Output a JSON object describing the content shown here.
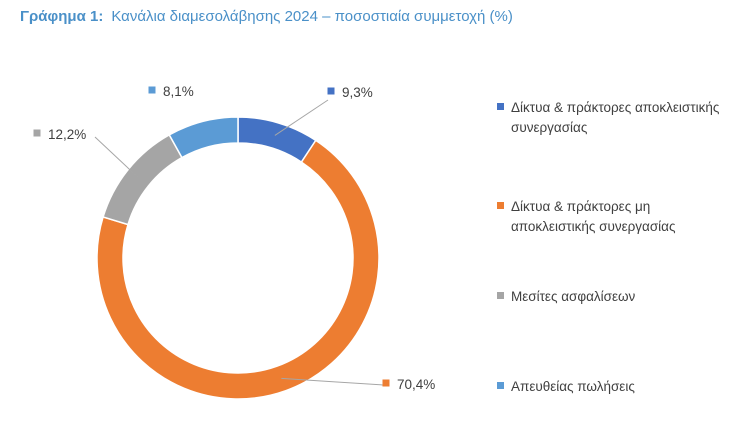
{
  "chart_data": {
    "type": "pie",
    "title": "Γράφημα 1:   Κανάλια διαμεσολάβησης 2024 – ποσοστιαία συμμετοχή (%)",
    "title_prefix": "Γράφημα 1:",
    "title_text": "Κανάλια διαμεσολάβησης 2024 – ποσοστιαία συμμετοχή (%)",
    "donut": true,
    "legend_position": "right",
    "categories": [
      "Δίκτυα & πράκτορες αποκλειστικής συνεργασίας",
      "Δίκτυα & πράκτορες μη αποκλειστικής συνεργασίας",
      "Μεσίτες ασφαλίσεων",
      "Απευθείας πωλήσεις"
    ],
    "legend_lines": [
      [
        "Δίκτυα & πράκτορες αποκλειστικής",
        "συνεργασίας"
      ],
      [
        "Δίκτυα & πράκτορες μη",
        "αποκλειστικής συνεργασίας"
      ],
      [
        "Μεσίτες ασφαλίσεων"
      ],
      [
        "Απευθείας πωλήσεις"
      ]
    ],
    "values": [
      9.3,
      70.4,
      12.2,
      8.1
    ],
    "labels": [
      "9,3%",
      "70,4%",
      "12,2%",
      "8,1%"
    ],
    "colors": [
      "#4472c4",
      "#ed7d31",
      "#a5a5a5",
      "#5b9bd5"
    ]
  }
}
